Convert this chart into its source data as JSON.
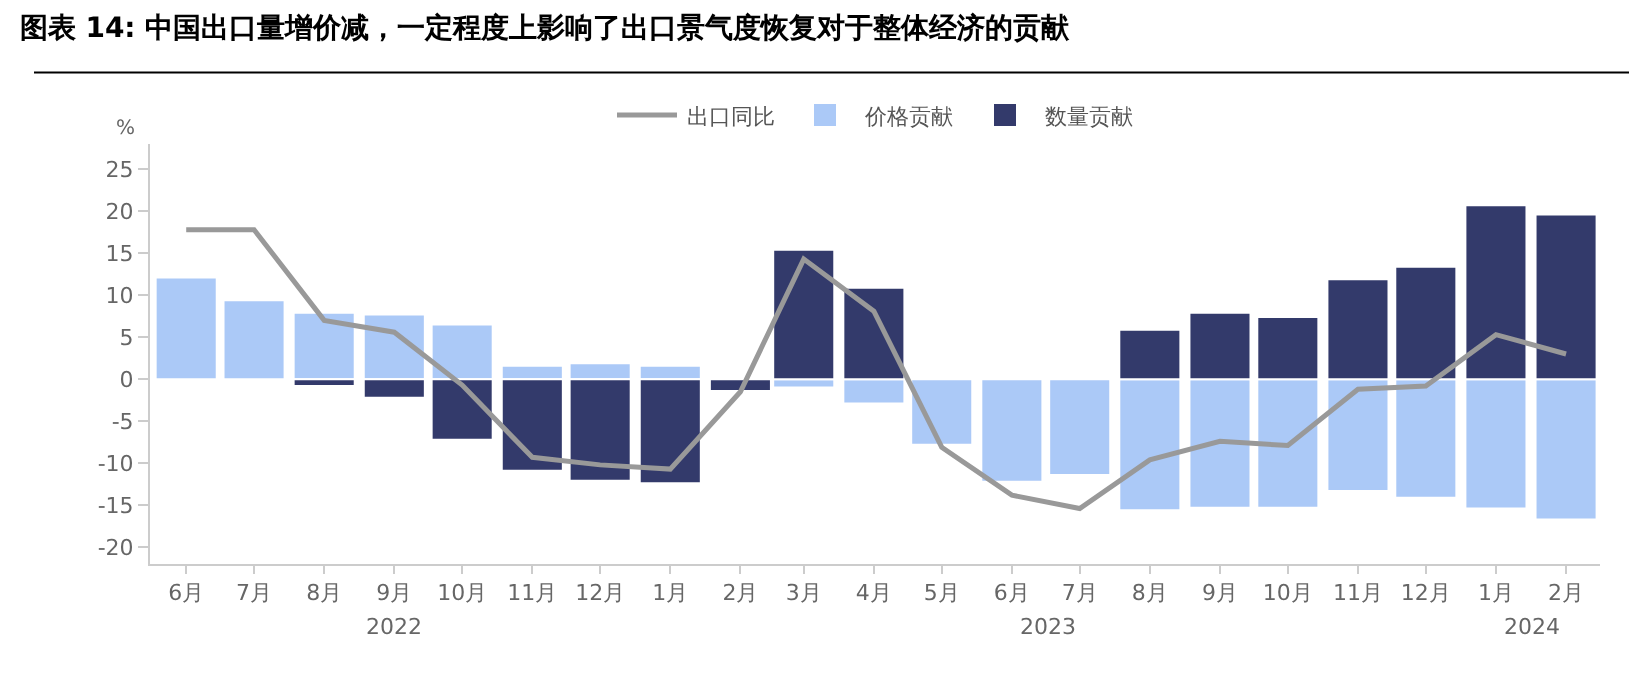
{
  "chart_data": {
    "type": "bar",
    "title": "图表 14: 中国出口量增价减，一定程度上影响了出口景气度恢复对于整体经济的贡献",
    "ylabel": "%",
    "stacked": true,
    "legend": "top",
    "x": [
      "2022-06",
      "2022-07",
      "2022-08",
      "2022-09",
      "2022-10",
      "2022-11",
      "2022-12",
      "2023-01",
      "2023-02",
      "2023-03",
      "2023-04",
      "2023-05",
      "2023-06",
      "2023-07",
      "2023-08",
      "2023-09",
      "2023-10",
      "2023-11",
      "2023-12",
      "2024-01",
      "2024-02"
    ],
    "xlim": [
      "2022-05-16",
      "2024-02-16"
    ],
    "xticks": [
      {
        "value": "2022-06",
        "label": "6月"
      },
      {
        "value": "2022-07",
        "label": "7月"
      },
      {
        "value": "2022-08",
        "label": "8月"
      },
      {
        "value": "2022-09",
        "label": "9月"
      },
      {
        "value": "2022-10",
        "label": "10月"
      },
      {
        "value": "2022-11",
        "label": "11月"
      },
      {
        "value": "2022-12",
        "label": "12月"
      },
      {
        "value": "2023-01",
        "label": "1月"
      },
      {
        "value": "2023-02",
        "label": "2月"
      },
      {
        "value": "2023-03",
        "label": "3月"
      },
      {
        "value": "2023-04",
        "label": "4月"
      },
      {
        "value": "2023-05",
        "label": "5月"
      },
      {
        "value": "2023-06",
        "label": "6月"
      },
      {
        "value": "2023-07",
        "label": "7月"
      },
      {
        "value": "2023-08",
        "label": "8月"
      },
      {
        "value": "2023-09",
        "label": "9月"
      },
      {
        "value": "2023-10",
        "label": "10月"
      },
      {
        "value": "2023-11",
        "label": "11月"
      },
      {
        "value": "2023-12",
        "label": "12月"
      },
      {
        "value": "2024-01",
        "label": "1月"
      },
      {
        "value": "2024-02",
        "label": "2月"
      }
    ],
    "ylim": [
      -22,
      28
    ],
    "yticks": [
      -20,
      -15,
      -10,
      -5,
      0,
      5,
      10,
      15,
      20,
      25
    ],
    "annotations": [
      "2022",
      "2023",
      "2024"
    ],
    "series": [
      {
        "name": "出口同比",
        "type": "line",
        "color": "#999999",
        "values": [
          17.8,
          17.8,
          7.0,
          5.6,
          -0.7,
          -9.3,
          -10.2,
          -10.7,
          -1.5,
          14.3,
          8.1,
          -8.1,
          -13.8,
          -15.4,
          -9.6,
          -7.4,
          -7.9,
          -1.2,
          -0.8,
          5.3,
          3.0
        ]
      },
      {
        "name": "价格贡献",
        "color": "#abc9f7",
        "values": [
          12.1,
          9.4,
          7.9,
          7.7,
          6.5,
          1.6,
          1.9,
          1.6,
          null,
          -1.0,
          -2.9,
          -7.8,
          -12.2,
          -11.4,
          -15.6,
          -15.3,
          -15.3,
          -13.3,
          -14.1,
          -15.4,
          -16.7
        ]
      },
      {
        "name": "数量贡献",
        "color": "#333a6b",
        "values": [
          null,
          null,
          -0.8,
          -2.2,
          -7.2,
          -10.9,
          -12.1,
          -12.4,
          -1.4,
          15.4,
          10.9,
          null,
          null,
          null,
          5.9,
          7.9,
          7.4,
          11.9,
          13.4,
          20.7,
          19.6
        ]
      }
    ]
  }
}
